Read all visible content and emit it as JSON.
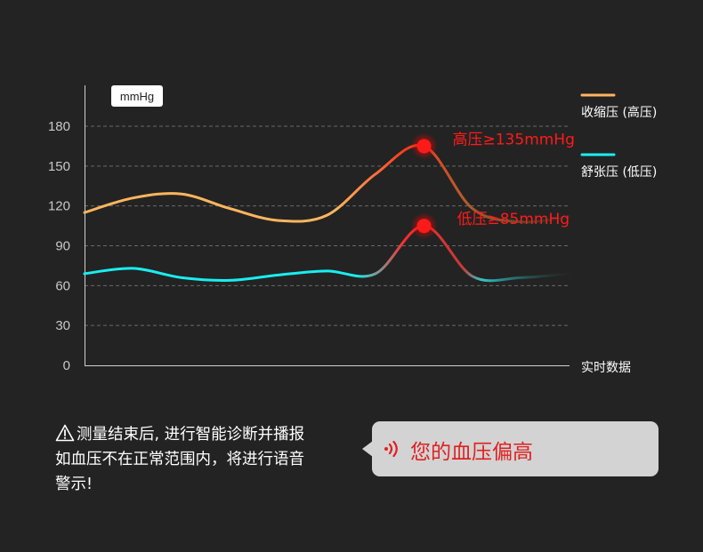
{
  "chart_data": {
    "type": "line",
    "unit": "mmHg",
    "xlabel": "实时数据",
    "ylim": [
      0,
      180
    ],
    "yticks": [
      0,
      30,
      60,
      90,
      120,
      150,
      180
    ],
    "grid": true,
    "legend_position": "right",
    "x": [
      0,
      1,
      2,
      3,
      4,
      5,
      6,
      7,
      8,
      9,
      10
    ],
    "series": [
      {
        "name": "收缩压 (高压)",
        "color": "#ffb55e",
        "values": [
          115,
          126,
          129,
          118,
          109,
          113,
          144,
          165,
          118,
          108,
          112
        ]
      },
      {
        "name": "舒张压 (低压)",
        "color": "#19eef0",
        "values": [
          69,
          73,
          66,
          64,
          68,
          71,
          69,
          105,
          67,
          66,
          69
        ]
      }
    ],
    "annotations": [
      {
        "text": "高压≥135mmHg",
        "x": 7,
        "y": 165,
        "color": "#ff1a1a"
      },
      {
        "text": "低压≥85mmHg",
        "x": 7,
        "y": 105,
        "color": "#ff1a1a"
      }
    ]
  },
  "note": {
    "line1": "测量结束后, 进行智能诊断并播报",
    "line2": "如血压不在正常范围内，将进行语音",
    "line3": "警示!"
  },
  "bubble": {
    "text": "您的血压偏高"
  },
  "icons": {
    "warning": "warning-triangle-icon",
    "voice": "voice-wave-icon"
  }
}
